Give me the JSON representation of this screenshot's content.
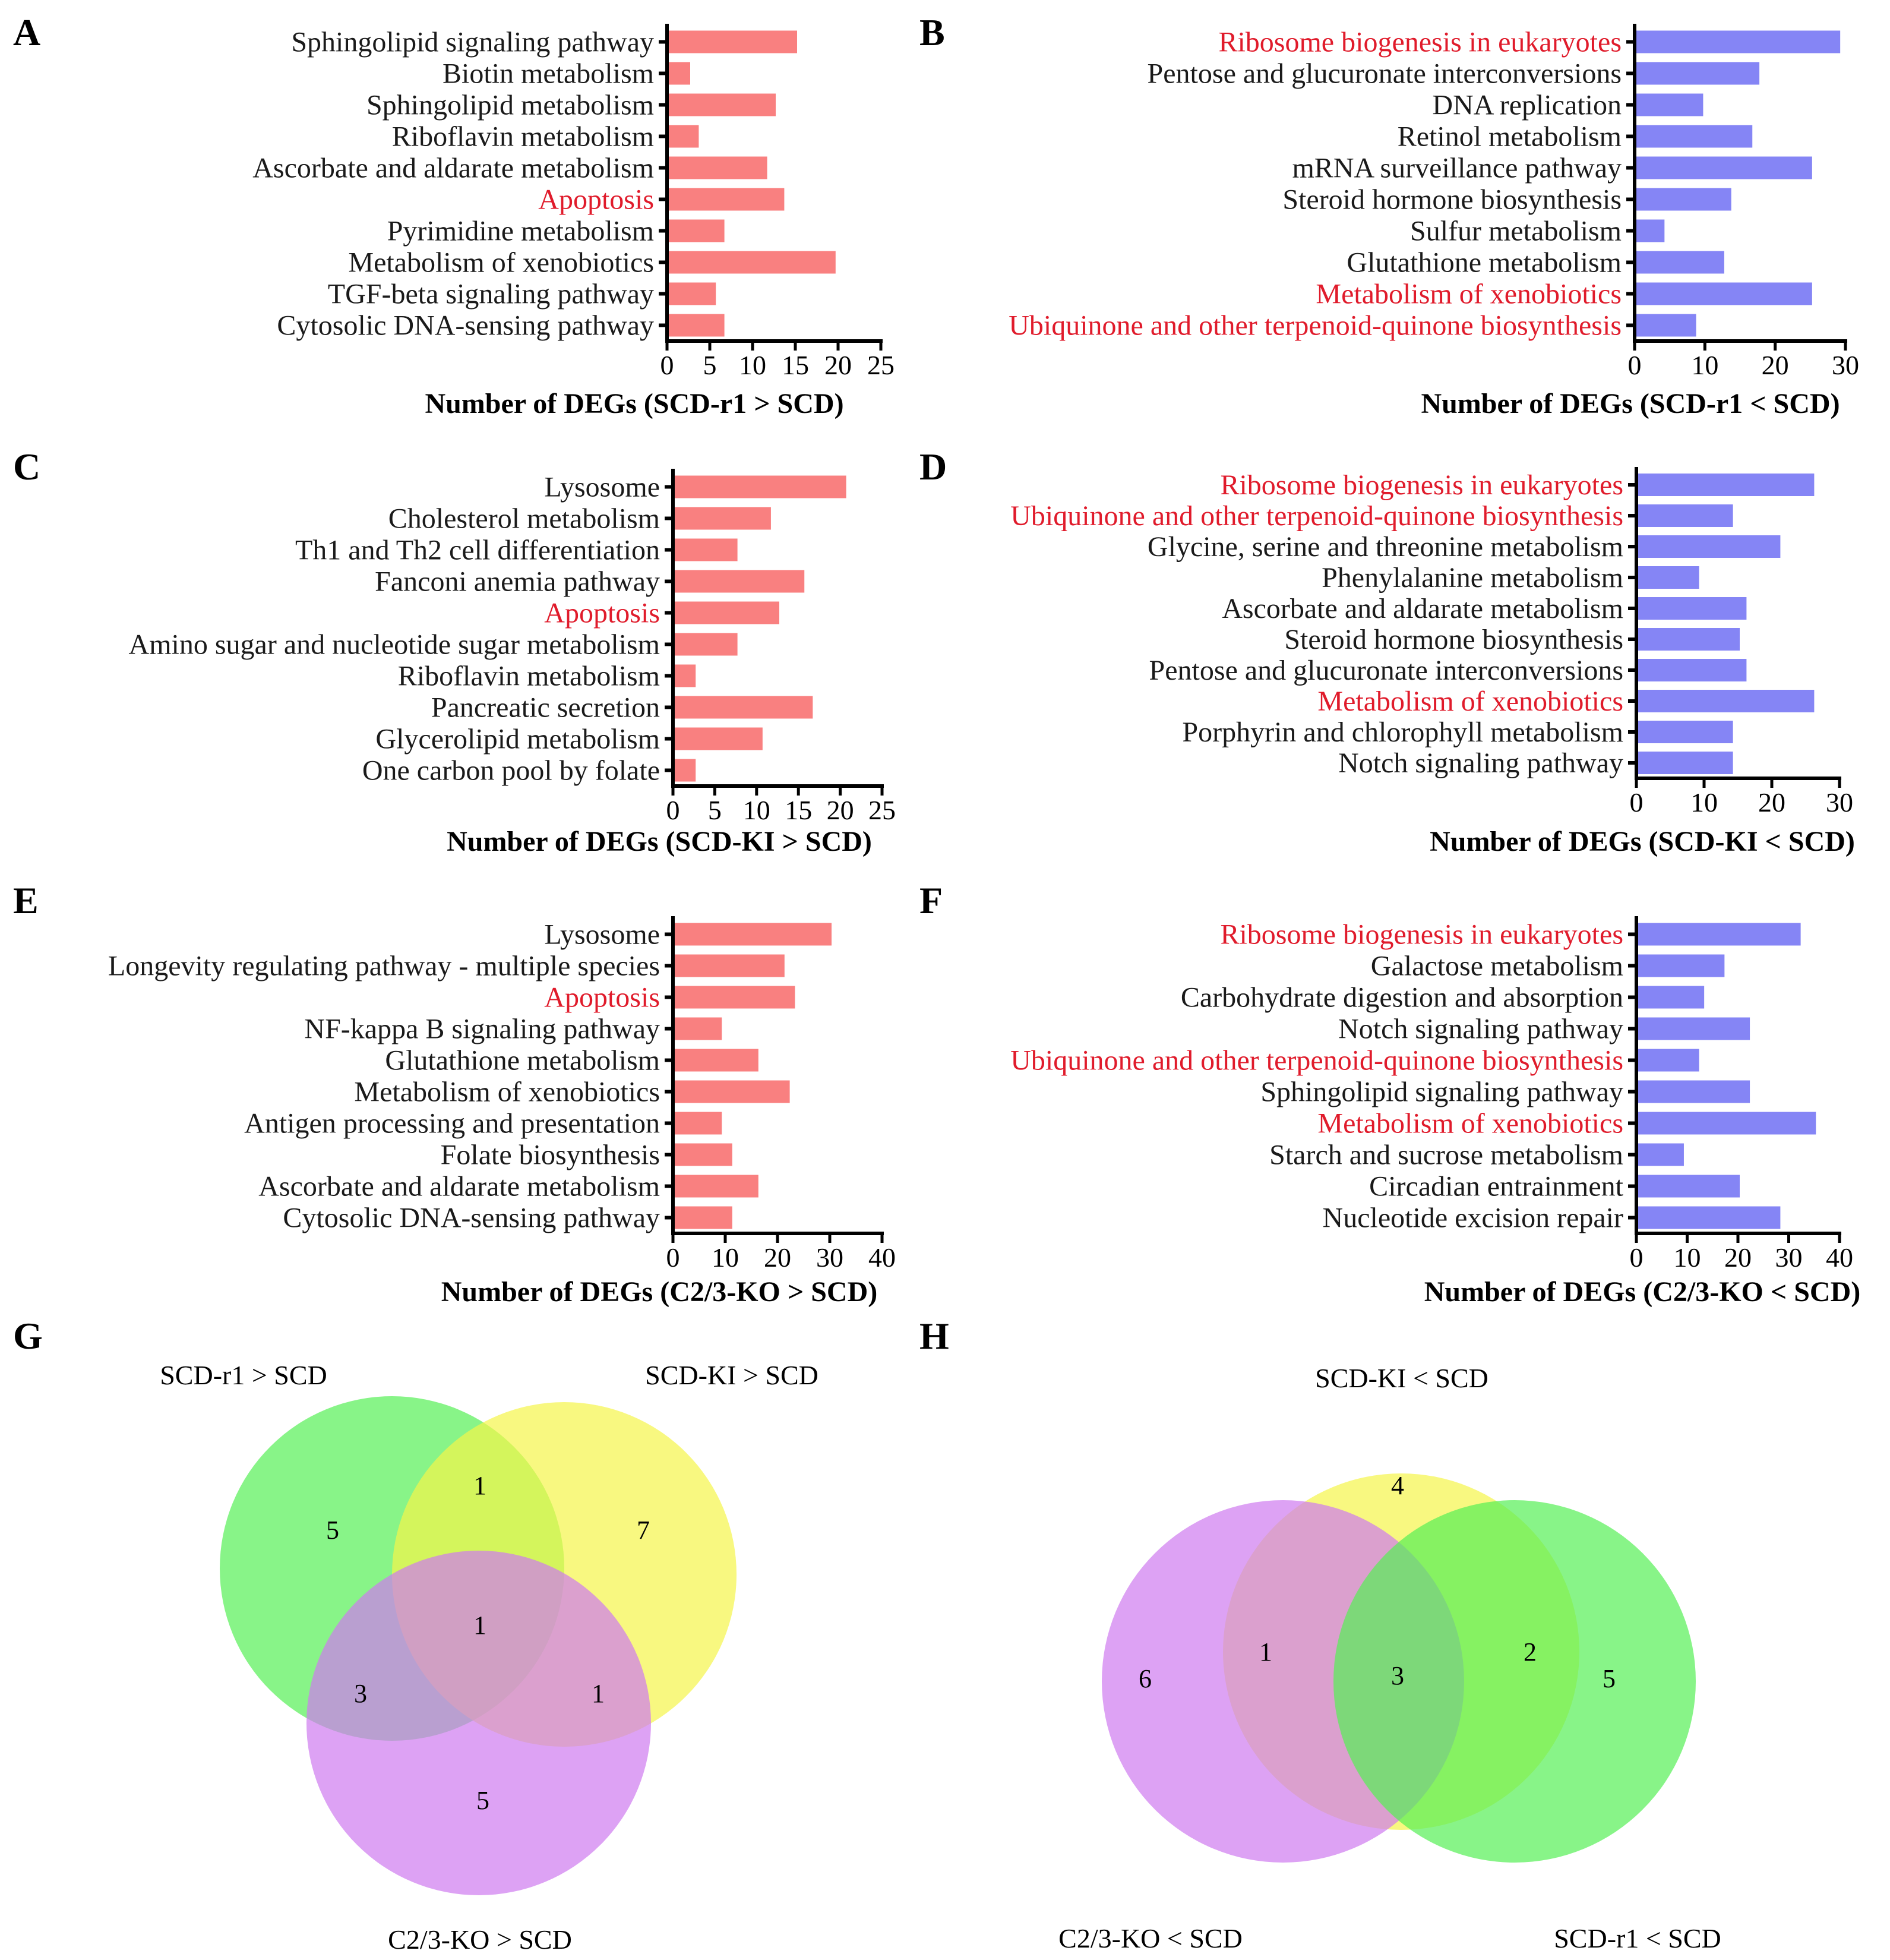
{
  "colors": {
    "up_bar": "#f98080",
    "down_bar": "#8585f5",
    "highlight_text": "#e01b2b",
    "normal_text": "#1a1a1a",
    "venn_green": "#55f055",
    "venn_yellow": "#f5f54a",
    "venn_purple": "#cf7bef"
  },
  "chart_data": [
    {
      "panel": "A",
      "type": "bar",
      "orientation": "horizontal",
      "xlabel": "Number of DEGs (SCD-r1 > SCD)",
      "xlim": [
        0,
        25
      ],
      "xticks": [
        "0",
        "5",
        "10",
        "15",
        "20",
        "25"
      ],
      "categories": [
        "Sphingolipid signaling pathway",
        "Biotin metabolism",
        "Sphingolipid metabolism",
        "Riboflavin metabolism",
        "Ascorbate and aldarate metabolism",
        "Apoptosis",
        "Pyrimidine metabolism",
        "Metabolism of xenobiotics",
        "TGF-beta signaling pathway",
        "Cytosolic DNA-sensing pathway"
      ],
      "values": [
        15,
        2.5,
        12.5,
        3.5,
        11.5,
        13.5,
        6.5,
        19.5,
        5.5,
        6.5
      ],
      "highlighted": [
        "Apoptosis"
      ]
    },
    {
      "panel": "B",
      "type": "bar",
      "orientation": "horizontal",
      "xlabel": "Number of DEGs (SCD-r1 < SCD)",
      "xlim": [
        0,
        30
      ],
      "xticks": [
        "0",
        "10",
        "20",
        "30"
      ],
      "categories": [
        "Ribosome biogenesis in eukaryotes",
        "Pentose and glucuronate interconversions",
        "DNA replication",
        "Retinol metabolism",
        "mRNA surveillance pathway",
        "Steroid hormone biosynthesis",
        "Sulfur metabolism",
        "Glutathione metabolism",
        "Metabolism of xenobiotics",
        "Ubiquinone and other terpenoid-quinone biosynthesis"
      ],
      "values": [
        29,
        17.5,
        9.5,
        16.5,
        25,
        13.5,
        4,
        12.5,
        25,
        8.5
      ],
      "highlighted": [
        "Ribosome biogenesis in eukaryotes",
        "Metabolism of xenobiotics",
        "Ubiquinone and other terpenoid-quinone biosynthesis"
      ]
    },
    {
      "panel": "C",
      "type": "bar",
      "orientation": "horizontal",
      "xlabel": "Number of DEGs (SCD-KI > SCD)",
      "xlim": [
        0,
        25
      ],
      "xticks": [
        "0",
        "5",
        "10",
        "15",
        "20",
        "25"
      ],
      "categories": [
        "Lysosome",
        "Cholesterol metabolism",
        "Th1 and Th2 cell differentiation",
        "Fanconi anemia pathway",
        "Apoptosis",
        "Amino sugar and nucleotide sugar metabolism",
        "Riboflavin metabolism",
        "Pancreatic secretion",
        "Glycerolipid metabolism",
        "One carbon pool by folate"
      ],
      "values": [
        20.5,
        11.5,
        7.5,
        15.5,
        12.5,
        7.5,
        2.5,
        16.5,
        10.5,
        2.5
      ],
      "highlighted": [
        "Apoptosis"
      ]
    },
    {
      "panel": "D",
      "type": "bar",
      "orientation": "horizontal",
      "xlabel": "Number of DEGs (SCD-KI < SCD)",
      "xlim": [
        0,
        30
      ],
      "xticks": [
        "0",
        "10",
        "20",
        "30"
      ],
      "categories": [
        "Ribosome biogenesis in eukaryotes",
        "Ubiquinone and other terpenoid-quinone biosynthesis",
        "Glycine, serine and threonine metabolism",
        "Phenylalanine metabolism",
        "Ascorbate and aldarate metabolism",
        "Steroid hormone biosynthesis",
        "Pentose and glucuronate interconversions",
        "Metabolism of xenobiotics",
        "Porphyrin and chlorophyll metabolism",
        "Notch signaling pathway"
      ],
      "values": [
        26,
        14,
        21,
        9,
        16,
        15,
        16,
        26,
        14,
        14
      ],
      "highlighted": [
        "Ribosome biogenesis in eukaryotes",
        "Ubiquinone and other terpenoid-quinone biosynthesis",
        "Metabolism of xenobiotics"
      ]
    },
    {
      "panel": "E",
      "type": "bar",
      "orientation": "horizontal",
      "xlabel": "Number of DEGs (C2/3-KO > SCD)",
      "xlim": [
        0,
        40
      ],
      "xticks": [
        "0",
        "10",
        "20",
        "30",
        "40"
      ],
      "categories": [
        "Lysosome",
        "Longevity regulating pathway - multiple species",
        "Apoptosis",
        "NF-kappa B signaling pathway",
        "Glutathione metabolism",
        "Metabolism of xenobiotics",
        "Antigen processing and presentation",
        "Folate biosynthesis",
        "Ascorbate and aldarate metabolism",
        "Cytosolic DNA-sensing pathway"
      ],
      "values": [
        30,
        21,
        23,
        9,
        16,
        22,
        9,
        11,
        16,
        11
      ],
      "highlighted": [
        "Apoptosis"
      ]
    },
    {
      "panel": "F",
      "type": "bar",
      "orientation": "horizontal",
      "xlabel": "Number of DEGs (C2/3-KO < SCD)",
      "xlim": [
        0,
        40
      ],
      "xticks": [
        "0",
        "10",
        "20",
        "30",
        "40"
      ],
      "categories": [
        "Ribosome biogenesis in eukaryotes",
        "Galactose metabolism",
        "Carbohydrate digestion and absorption",
        "Notch signaling pathway",
        "Ubiquinone and other terpenoid-quinone biosynthesis",
        "Sphingolipid signaling pathway",
        "Metabolism of xenobiotics",
        "Starch and sucrose metabolism",
        "Circadian entrainment",
        "Nucleotide excision repair"
      ],
      "values": [
        32,
        17,
        13,
        22,
        12,
        22,
        35,
        9,
        20,
        28
      ],
      "highlighted": [
        "Ribosome biogenesis in eukaryotes",
        "Ubiquinone and other terpenoid-quinone biosynthesis",
        "Metabolism of xenobiotics"
      ]
    },
    {
      "panel": "G",
      "type": "venn",
      "sets": [
        "SCD-r1 > SCD",
        "SCD-KI > SCD",
        "C2/3-KO > SCD"
      ],
      "counts": [
        "5",
        "7",
        "5",
        "1",
        "3",
        "1",
        "1"
      ],
      "regions": [
        "only SCD-r1 > SCD",
        "only SCD-KI > SCD",
        "only C2/3-KO > SCD",
        "SCD-r1 & SCD-KI",
        "SCD-r1 & C2/3-KO",
        "SCD-KI & C2/3-KO",
        "all three"
      ]
    },
    {
      "panel": "H",
      "type": "venn",
      "sets": [
        "SCD-KI < SCD",
        "C2/3-KO < SCD",
        "SCD-r1 < SCD"
      ],
      "counts": [
        "4",
        "6",
        "5",
        "1",
        "2",
        "3"
      ],
      "regions": [
        "only SCD-KI < SCD",
        "only C2/3-KO < SCD",
        "only SCD-r1 < SCD",
        "SCD-KI & C2/3-KO",
        "SCD-KI & SCD-r1",
        "all three"
      ]
    }
  ]
}
